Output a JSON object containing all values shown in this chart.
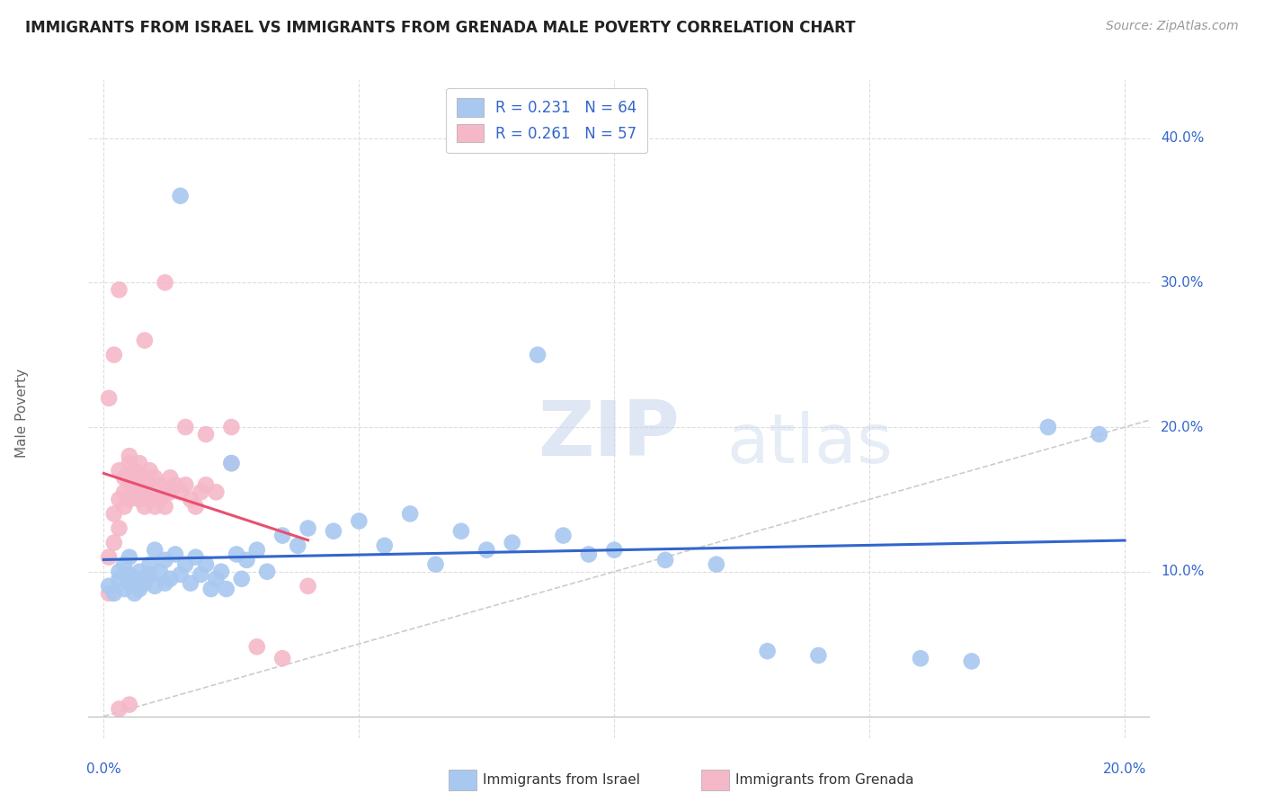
{
  "title": "IMMIGRANTS FROM ISRAEL VS IMMIGRANTS FROM GRENADA MALE POVERTY CORRELATION CHART",
  "source": "Source: ZipAtlas.com",
  "ylabel": "Male Poverty",
  "color_israel": "#A8C8F0",
  "color_grenada": "#F5B8C8",
  "trendline_israel_color": "#3366CC",
  "trendline_grenada_color": "#E85070",
  "diagonal_color": "#CCCCCC",
  "legend_label_israel": "Immigrants from Israel",
  "legend_label_grenada": "Immigrants from Grenada",
  "israel_x": [
    0.001,
    0.002,
    0.003,
    0.003,
    0.004,
    0.004,
    0.005,
    0.005,
    0.005,
    0.006,
    0.006,
    0.007,
    0.007,
    0.008,
    0.008,
    0.009,
    0.009,
    0.01,
    0.01,
    0.011,
    0.012,
    0.012,
    0.013,
    0.014,
    0.015,
    0.016,
    0.017,
    0.018,
    0.019,
    0.02,
    0.021,
    0.022,
    0.023,
    0.024,
    0.026,
    0.027,
    0.028,
    0.03,
    0.032,
    0.035,
    0.038,
    0.04,
    0.045,
    0.05,
    0.055,
    0.06,
    0.065,
    0.07,
    0.075,
    0.08,
    0.09,
    0.095,
    0.1,
    0.11,
    0.12,
    0.13,
    0.14,
    0.015,
    0.025,
    0.085,
    0.16,
    0.17,
    0.185,
    0.195
  ],
  "israel_y": [
    0.09,
    0.085,
    0.095,
    0.1,
    0.088,
    0.105,
    0.092,
    0.098,
    0.11,
    0.085,
    0.095,
    0.1,
    0.088,
    0.095,
    0.092,
    0.105,
    0.098,
    0.09,
    0.115,
    0.1,
    0.092,
    0.108,
    0.095,
    0.112,
    0.098,
    0.105,
    0.092,
    0.11,
    0.098,
    0.105,
    0.088,
    0.095,
    0.1,
    0.088,
    0.112,
    0.095,
    0.108,
    0.115,
    0.1,
    0.125,
    0.118,
    0.13,
    0.128,
    0.135,
    0.118,
    0.14,
    0.105,
    0.128,
    0.115,
    0.12,
    0.125,
    0.112,
    0.115,
    0.108,
    0.105,
    0.045,
    0.042,
    0.36,
    0.175,
    0.25,
    0.04,
    0.038,
    0.2,
    0.195
  ],
  "grenada_x": [
    0.001,
    0.001,
    0.002,
    0.002,
    0.003,
    0.003,
    0.003,
    0.004,
    0.004,
    0.004,
    0.005,
    0.005,
    0.005,
    0.005,
    0.006,
    0.006,
    0.006,
    0.007,
    0.007,
    0.007,
    0.008,
    0.008,
    0.008,
    0.009,
    0.009,
    0.009,
    0.01,
    0.01,
    0.01,
    0.011,
    0.011,
    0.012,
    0.012,
    0.013,
    0.013,
    0.014,
    0.015,
    0.016,
    0.017,
    0.018,
    0.019,
    0.02,
    0.022,
    0.025,
    0.03,
    0.035,
    0.04,
    0.001,
    0.002,
    0.003,
    0.008,
    0.012,
    0.016,
    0.02,
    0.025,
    0.003,
    0.005
  ],
  "grenada_y": [
    0.11,
    0.085,
    0.14,
    0.12,
    0.15,
    0.13,
    0.17,
    0.145,
    0.165,
    0.155,
    0.16,
    0.175,
    0.15,
    0.18,
    0.155,
    0.165,
    0.17,
    0.15,
    0.16,
    0.175,
    0.145,
    0.155,
    0.165,
    0.15,
    0.16,
    0.17,
    0.155,
    0.145,
    0.165,
    0.15,
    0.16,
    0.155,
    0.145,
    0.165,
    0.155,
    0.16,
    0.155,
    0.16,
    0.15,
    0.145,
    0.155,
    0.16,
    0.155,
    0.175,
    0.048,
    0.04,
    0.09,
    0.22,
    0.25,
    0.295,
    0.26,
    0.3,
    0.2,
    0.195,
    0.2,
    0.005,
    0.008
  ],
  "xlim": [
    0.0,
    0.2
  ],
  "ylim": [
    0.0,
    0.42
  ],
  "x_ticks": [
    0.0,
    0.05,
    0.1,
    0.15,
    0.2
  ],
  "y_ticks": [
    0.1,
    0.2,
    0.3,
    0.4
  ],
  "x_tick_labels": [
    "0.0%",
    "",
    "",
    "",
    "20.0%"
  ],
  "y_tick_labels": [
    "10.0%",
    "20.0%",
    "30.0%",
    "40.0%"
  ]
}
